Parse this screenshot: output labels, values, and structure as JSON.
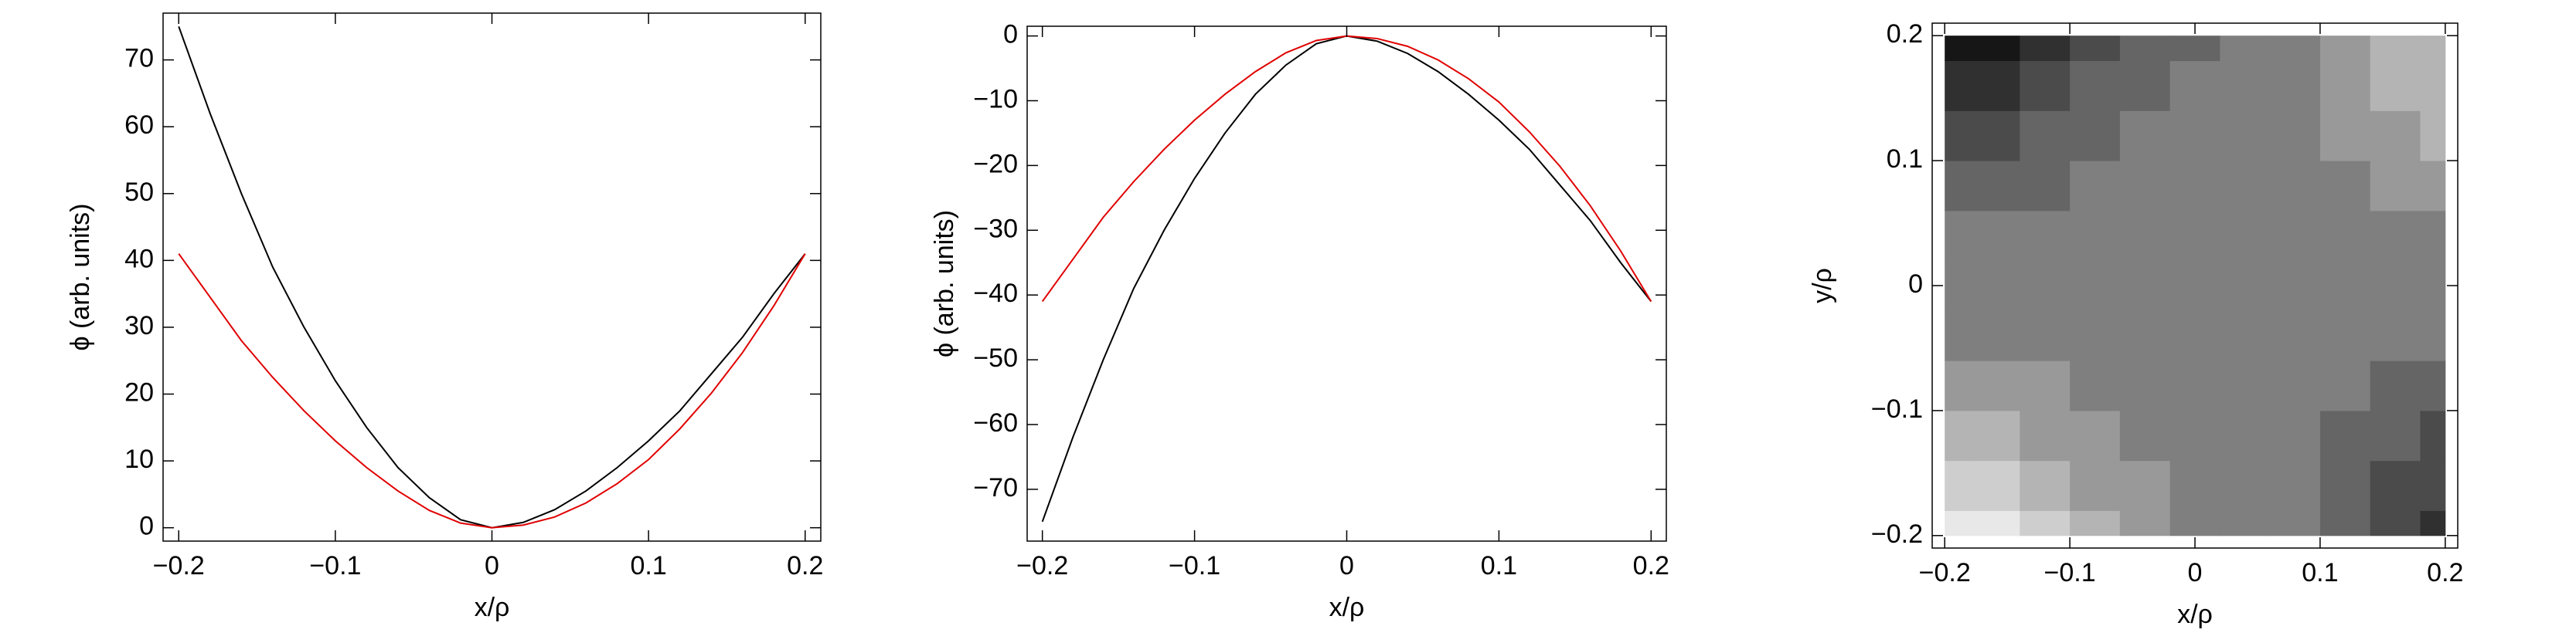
{
  "chart_data": [
    {
      "type": "line",
      "xlabel": "x/ρ",
      "ylabel": "ϕ (arb. units)",
      "x": [
        -0.2,
        -0.18,
        -0.16,
        -0.14,
        -0.12,
        -0.1,
        -0.08,
        -0.06,
        -0.04,
        -0.02,
        0,
        0.02,
        0.04,
        0.06,
        0.08,
        0.1,
        0.12,
        0.14,
        0.16,
        0.18,
        0.2
      ],
      "series": [
        {
          "color": "#000000",
          "values": [
            75,
            62,
            50,
            39,
            30,
            22,
            15,
            9,
            4.5,
            1.2,
            0,
            0.8,
            2.7,
            5.5,
            9,
            13,
            17.5,
            23,
            28.5,
            35,
            41
          ]
        },
        {
          "color": "#e00000",
          "values": [
            41,
            34.5,
            28,
            22.5,
            17.5,
            13,
            9,
            5.5,
            2.6,
            0.7,
            0,
            0.4,
            1.6,
            3.7,
            6.6,
            10.2,
            14.8,
            20.1,
            26.2,
            33.2,
            41
          ]
        }
      ],
      "xlim": [
        -0.21,
        0.21
      ],
      "ylim": [
        -2,
        77
      ],
      "xticks": [
        {
          "value": -0.2,
          "label": "−0.2"
        },
        {
          "value": -0.1,
          "label": "−0.1"
        },
        0,
        0.1,
        0.2
      ],
      "yticks": [
        0,
        10,
        20,
        30,
        40,
        50,
        60,
        70
      ]
    },
    {
      "type": "line",
      "xlabel": "x/ρ",
      "ylabel": "ϕ (arb. units)",
      "x": [
        -0.2,
        -0.18,
        -0.16,
        -0.14,
        -0.12,
        -0.1,
        -0.08,
        -0.06,
        -0.04,
        -0.02,
        0,
        0.02,
        0.04,
        0.06,
        0.08,
        0.1,
        0.12,
        0.14,
        0.16,
        0.18,
        0.2
      ],
      "series": [
        {
          "color": "#000000",
          "values": [
            -75,
            -62,
            -50,
            -39,
            -30,
            -22,
            -15,
            -9,
            -4.5,
            -1.2,
            0,
            -0.8,
            -2.7,
            -5.5,
            -9,
            -13,
            -17.5,
            -23,
            -28.5,
            -35,
            -41
          ]
        },
        {
          "color": "#e00000",
          "values": [
            -41,
            -34.5,
            -28,
            -22.5,
            -17.5,
            -13,
            -9,
            -5.5,
            -2.6,
            -0.7,
            0,
            -0.4,
            -1.6,
            -3.7,
            -6.6,
            -10.2,
            -14.8,
            -20.1,
            -26.2,
            -33.2,
            -41
          ]
        }
      ],
      "xlim": [
        -0.21,
        0.21
      ],
      "ylim": [
        -78,
        1.5
      ],
      "xticks": [
        {
          "value": -0.2,
          "label": "−0.2"
        },
        {
          "value": -0.1,
          "label": "−0.1"
        },
        0,
        0.1,
        0.2
      ],
      "yticks": [
        0,
        {
          "value": -10,
          "label": "−10"
        },
        {
          "value": -20,
          "label": "−20"
        },
        {
          "value": -30,
          "label": "−30"
        },
        {
          "value": -40,
          "label": "−40"
        },
        {
          "value": -50,
          "label": "−50"
        },
        {
          "value": -60,
          "label": "−60"
        },
        {
          "value": -70,
          "label": "−70"
        }
      ]
    },
    {
      "type": "contour",
      "xlabel": "x/ρ",
      "ylabel": "y/ρ",
      "colormap": "gray",
      "x": [
        -0.2,
        -0.16,
        -0.12,
        -0.08,
        -0.04,
        0,
        0.04,
        0.08,
        0.12,
        0.16,
        0.2
      ],
      "y": [
        -0.2,
        -0.16,
        -0.12,
        -0.08,
        -0.04,
        0,
        0.04,
        0.08,
        0.12,
        0.16,
        0.2
      ],
      "z": [
        [
          50,
          42,
          34,
          26,
          18,
          10,
          2,
          -6,
          -14,
          -22,
          -30
        ],
        [
          37.1,
          30.7,
          24.3,
          17.9,
          11.5,
          5.1,
          -1.3,
          -7.7,
          -14.1,
          -20.5,
          -26.9
        ],
        [
          26.2,
          21.4,
          16.6,
          11.8,
          7,
          2.2,
          -2.6,
          -7.4,
          -12.2,
          -17,
          -21.8
        ],
        [
          16.6,
          13.4,
          10.2,
          7,
          3.8,
          0.6,
          -2.6,
          -5.8,
          -9,
          -12.2,
          -15.4
        ],
        [
          8.1,
          6.5,
          4.9,
          3.3,
          1.7,
          0.1,
          -1.5,
          -3.1,
          -4.7,
          -6.3,
          -7.9
        ],
        [
          0,
          0,
          0,
          0,
          0,
          0,
          0,
          0,
          0,
          0,
          0
        ],
        [
          -8.1,
          -6.5,
          -4.9,
          -3.3,
          -1.7,
          -0.1,
          1.5,
          3.1,
          4.7,
          6.3,
          7.9
        ],
        [
          -16.6,
          -13.4,
          -10.2,
          -7,
          -3.8,
          -0.6,
          2.6,
          5.8,
          9,
          12.2,
          15.4
        ],
        [
          -26.2,
          -21.4,
          -16.6,
          -11.8,
          -7,
          -2.2,
          2.6,
          7.4,
          12.2,
          17,
          21.8
        ],
        [
          -37.1,
          -30.7,
          -24.3,
          -17.9,
          -11.5,
          -5.1,
          1.3,
          7.7,
          14.1,
          20.5,
          26.9
        ],
        [
          -50,
          -42,
          -34,
          -26,
          -18,
          -10,
          -2,
          6,
          14,
          22,
          30
        ]
      ],
      "levels": [
        -40,
        -30,
        -20,
        -10,
        10,
        20,
        30,
        40
      ],
      "xlim": [
        -0.21,
        0.21
      ],
      "ylim": [
        -0.21,
        0.21
      ],
      "xticks": [
        {
          "value": -0.2,
          "label": "−0.2"
        },
        {
          "value": -0.1,
          "label": "−0.1"
        },
        0,
        0.1,
        0.2
      ],
      "yticks": [
        {
          "value": -0.2,
          "label": "−0.2"
        },
        {
          "value": -0.1,
          "label": "−0.1"
        },
        0,
        0.1,
        0.2
      ]
    }
  ]
}
